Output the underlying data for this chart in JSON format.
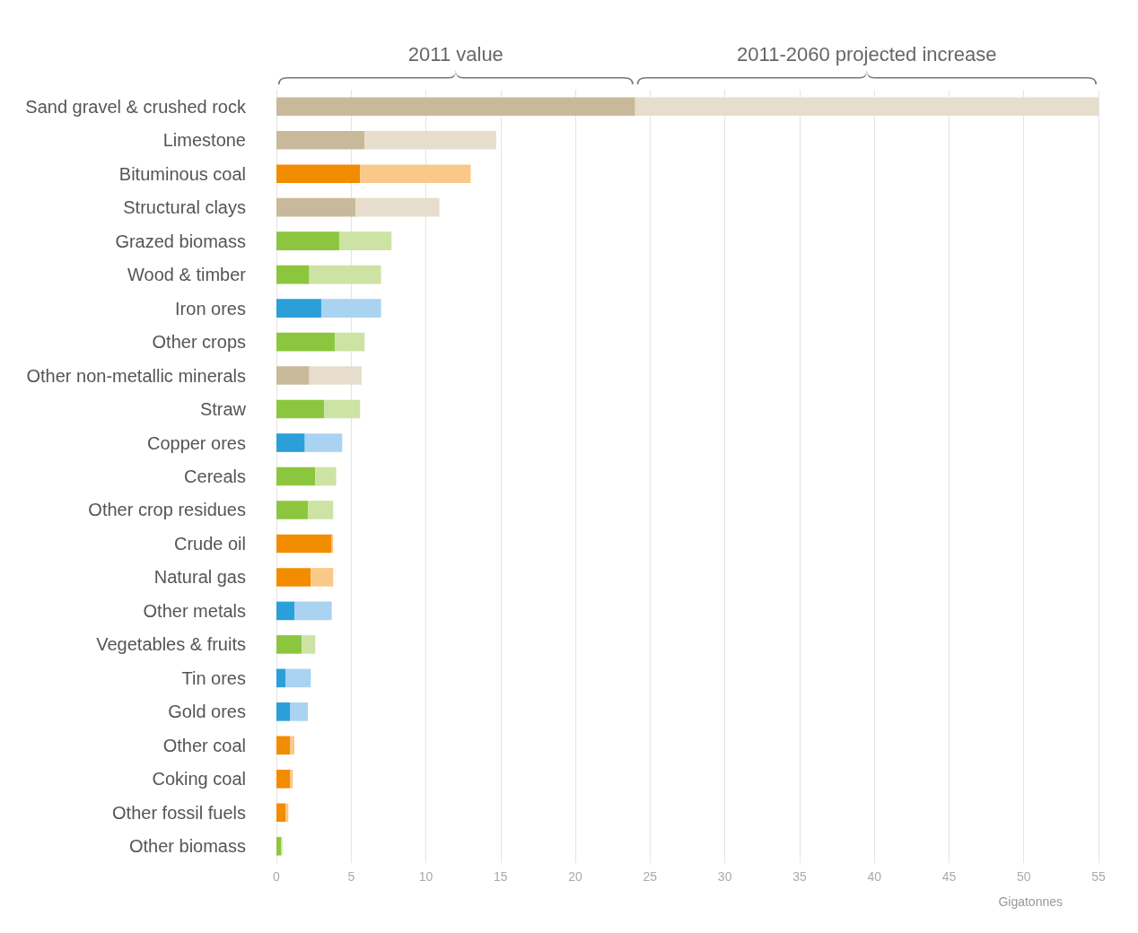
{
  "chart_data": {
    "type": "bar",
    "orientation": "horizontal",
    "stacked": true,
    "xlabel": "Gigatonnes",
    "annotations": [
      "2011 value",
      "2011-2060 projected increase"
    ],
    "categories": [
      "Sand gravel & crushed rock",
      "Limestone",
      "Bituminous coal",
      "Structural clays",
      "Grazed biomass",
      "Wood & timber",
      "Iron ores",
      "Other crops",
      "Other non-metallic minerals",
      "Straw",
      "Copper ores",
      "Cereals",
      "Other crop residues",
      "Crude oil",
      "Natural gas",
      "Other metals",
      "Vegetables & fruits",
      "Tin ores",
      "Gold ores",
      "Other coal",
      "Coking coal",
      "Other fossil fuels",
      "Other biomass"
    ],
    "series": [
      {
        "values": [
          24,
          5.9,
          5.6,
          5.3,
          4.2,
          2.2,
          3,
          3.9,
          2.2,
          3.2,
          1.9,
          2.6,
          2.1,
          3.7,
          2.3,
          1.2,
          1.7,
          0.6,
          0.9,
          0.9,
          0.9,
          0.6,
          0.3
        ],
        "colors": [
          "#c8b99a",
          "#c8b99a",
          "#f28c00",
          "#c8b99a",
          "#8cc63f",
          "#8cc63f",
          "#2a9fd8",
          "#8cc63f",
          "#c8b99a",
          "#8cc63f",
          "#2a9fd8",
          "#8cc63f",
          "#8cc63f",
          "#f28c00",
          "#f28c00",
          "#2a9fd8",
          "#8cc63f",
          "#2a9fd8",
          "#2a9fd8",
          "#f28c00",
          "#f28c00",
          "#f28c00",
          "#8cc63f"
        ]
      },
      {
        "values": [
          31,
          8.8,
          7.4,
          5.6,
          3.5,
          4.8,
          4,
          2,
          3.5,
          2.4,
          2.5,
          1.4,
          1.7,
          0.1,
          1.5,
          2.5,
          0.9,
          1.7,
          1.2,
          0.3,
          0.2,
          0.2,
          0.1
        ],
        "colors": [
          "#e6ddcc",
          "#e6ddcc",
          "#fac98a",
          "#e6ddcc",
          "#cde3a3",
          "#cde3a3",
          "#a9d3f0",
          "#cde3a3",
          "#e6ddcc",
          "#cde3a3",
          "#a9d3f0",
          "#cde3a3",
          "#cde3a3",
          "#fac98a",
          "#fac98a",
          "#a9d3f0",
          "#cde3a3",
          "#a9d3f0",
          "#a9d3f0",
          "#fac98a",
          "#fac98a",
          "#fac98a",
          "#cde3a3"
        ]
      }
    ],
    "xlim": [
      0,
      55
    ],
    "xticks": [
      0,
      5,
      10,
      15,
      20,
      25,
      30,
      35,
      40,
      45,
      50,
      55
    ],
    "grid": "x"
  }
}
